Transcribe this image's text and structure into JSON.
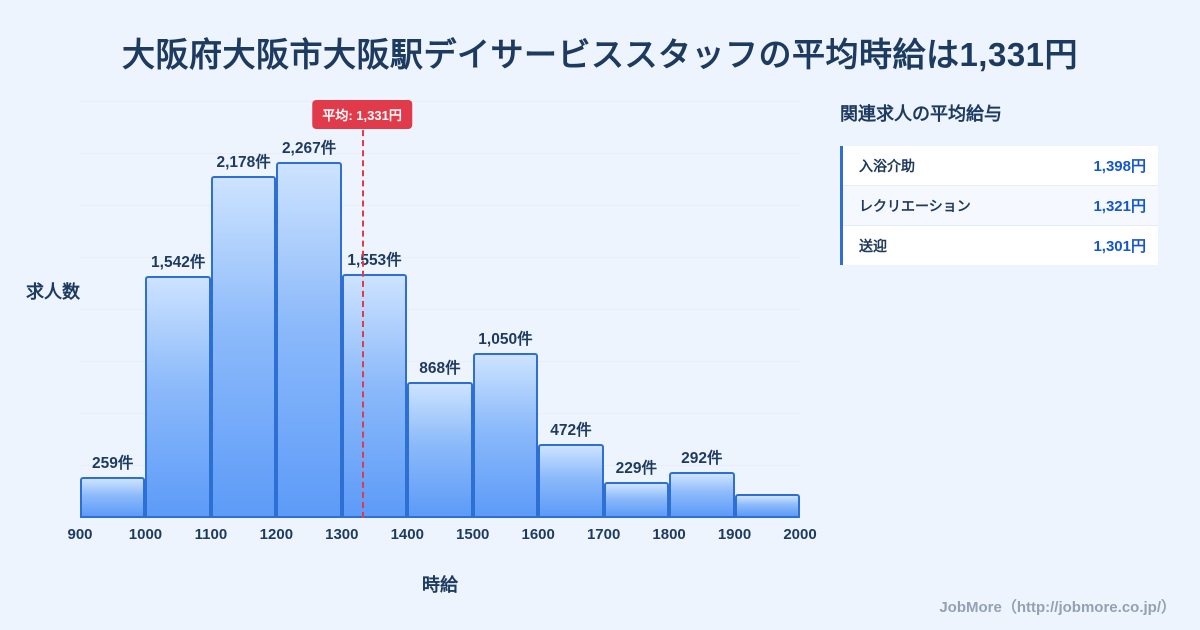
{
  "page": {
    "title": "大阪府大阪市大阪駅デイサービススタッフの平均時給は1,331円"
  },
  "chart_data": {
    "type": "bar",
    "title": "大阪府大阪市大阪駅デイサービススタッフの平均時給は1,331円",
    "xlabel": "時給",
    "ylabel": "求人数",
    "unit": "件",
    "xlim": [
      900,
      2000
    ],
    "grid": true,
    "x_ticks": [
      "900",
      "1000",
      "1100",
      "1200",
      "1300",
      "1400",
      "1500",
      "1600",
      "1700",
      "1800",
      "1900",
      "2000"
    ],
    "bins": [
      {
        "range": "900-1000",
        "value": 259,
        "label": "259件"
      },
      {
        "range": "1000-1100",
        "value": 1542,
        "label": "1,542件"
      },
      {
        "range": "1100-1200",
        "value": 2178,
        "label": "2,178件"
      },
      {
        "range": "1200-1300",
        "value": 2267,
        "label": "2,267件"
      },
      {
        "range": "1300-1400",
        "value": 1553,
        "label": "1,553件"
      },
      {
        "range": "1400-1500",
        "value": 868,
        "label": "868件"
      },
      {
        "range": "1500-1600",
        "value": 1050,
        "label": "1,050件"
      },
      {
        "range": "1600-1700",
        "value": 472,
        "label": "472件"
      },
      {
        "range": "1700-1800",
        "value": 229,
        "label": "229件"
      },
      {
        "range": "1800-1900",
        "value": 292,
        "label": "292件"
      },
      {
        "range": "1900-2000",
        "value": 150,
        "label": ""
      }
    ],
    "average": {
      "value": 1331,
      "label": "平均: 1,331円"
    }
  },
  "side_panel": {
    "heading": "関連求人の平均給与",
    "rows": [
      {
        "label": "入浴介助",
        "value": "1,398円"
      },
      {
        "label": "レクリエーション",
        "value": "1,321円"
      },
      {
        "label": "送迎",
        "value": "1,301円"
      }
    ]
  },
  "footer": {
    "credit": "JobMore（http://jobmore.co.jp/）"
  },
  "colors": {
    "background": "#edf4fe",
    "title_navy": "#1d3a5f",
    "bar_border": "#2e6fd3",
    "bar_gradient_top": "#cde3ff",
    "bar_gradient_bottom": "#5d9bf8",
    "average_red": "#e13a4a",
    "value_blue": "#1557cf",
    "gridline": "#e7eef8",
    "footer_gray": "#93a1b3"
  }
}
